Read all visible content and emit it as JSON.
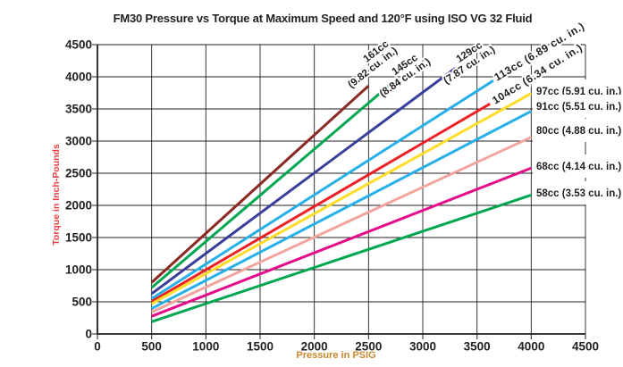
{
  "title": "FM30 Pressure vs Torque at Maximum Speed and 120°F using ISO VG 32 Fluid",
  "chart_data": {
    "type": "line",
    "title": "FM30 Pressure vs Torque at Maximum Speed and 120°F using ISO VG 32 Fluid",
    "xlabel": "Pressure in PSIG",
    "ylabel": "Torque in Inch-Pounds",
    "xlim": [
      0,
      4500
    ],
    "ylim": [
      0,
      4500
    ],
    "xticks": [
      0,
      500,
      1000,
      1500,
      2000,
      2500,
      3000,
      3500,
      4000,
      4500
    ],
    "yticks": [
      0,
      500,
      1000,
      1500,
      2000,
      2500,
      3000,
      3500,
      4000,
      4500
    ],
    "grid": true,
    "legend_position": "on-line-ends",
    "colors": {
      "xlabel": "#C8882B",
      "ylabel": "#EE3B41",
      "text": "#231F20",
      "grid": "#231F20"
    },
    "series": [
      {
        "name": "161cc (9.82 cu. in.)",
        "cc": "161cc",
        "cuin": 9.82,
        "color": "#8B2923",
        "x": [
          500,
          2500
        ],
        "y": [
          800,
          3860
        ],
        "label_lines": [
          "161cc",
          "(9.82 cu. in.)"
        ]
      },
      {
        "name": "145cc (8.84 cu. in.)",
        "cc": "145cc",
        "cuin": 8.84,
        "color": "#00A650",
        "x": [
          500,
          2700
        ],
        "y": [
          720,
          3880
        ],
        "label_lines": [
          "145cc",
          "(8.84 cu. in.)"
        ]
      },
      {
        "name": "129cc (7.87 cu. in.)",
        "cc": "129cc",
        "cuin": 7.87,
        "color": "#393E9A",
        "x": [
          500,
          3300
        ],
        "y": [
          626,
          4134
        ],
        "label_lines": [
          "129cc",
          "(7.87 cu. in.)"
        ]
      },
      {
        "name": "113cc (6.89 cu. in.)",
        "cc": "113cc",
        "cuin": 6.89,
        "color": "#27AFE7",
        "x": [
          500,
          3650
        ],
        "y": [
          548,
          3940
        ],
        "label_lines": [
          "113cc (6.89 cu. in.)"
        ]
      },
      {
        "name": "104cc (6.34 cu. in.)",
        "cc": "104cc",
        "cuin": 6.34,
        "color": "#ED2024",
        "x": [
          500,
          3620
        ],
        "y": [
          505,
          3580
        ],
        "label_lines": [
          "104cc (6.34 cu. in.)"
        ]
      },
      {
        "name": "97cc (5.91 cu. in.)",
        "cc": "97cc",
        "cuin": 5.91,
        "color": "#FFDC27",
        "x": [
          500,
          4000
        ],
        "y": [
          470,
          3740
        ],
        "label_lines": [
          "97cc (5.91 cu. in.)"
        ]
      },
      {
        "name": "91cc (5.51 cu. in.)",
        "cc": "91cc",
        "cuin": 5.51,
        "color": "#27AFE7",
        "x": [
          500,
          4000
        ],
        "y": [
          395,
          3465
        ],
        "label_lines": [
          "91cc (5.51 cu. in.)"
        ]
      },
      {
        "name": "80cc (4.88 cu. in.)",
        "cc": "80cc",
        "cuin": 4.88,
        "color": "#F2A49E",
        "x": [
          500,
          4000
        ],
        "y": [
          340,
          3060
        ],
        "label_lines": [
          "80cc (4.88 cu. in.)"
        ]
      },
      {
        "name": "68cc (4.14 cu. in.)",
        "cc": "68cc",
        "cuin": 4.14,
        "color": "#E50C8C",
        "x": [
          500,
          4000
        ],
        "y": [
          275,
          2580
        ],
        "label_lines": [
          "68cc (4.14 cu. in.)"
        ]
      },
      {
        "name": "58cc (3.53 cu. in.)",
        "cc": "58cc",
        "cuin": 3.53,
        "color": "#00A650",
        "x": [
          500,
          4000
        ],
        "y": [
          190,
          2160
        ],
        "label_lines": [
          "58cc (3.53 cu. in.)"
        ]
      }
    ]
  }
}
